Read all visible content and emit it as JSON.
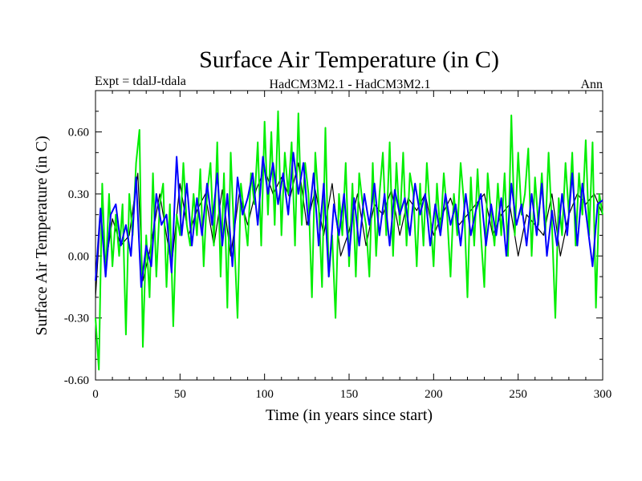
{
  "chart_data": {
    "type": "line",
    "title": "Surface Air Temperature (in C)",
    "subtitle_left": "Expt = tdalJ-tdala",
    "subtitle_center": "HadCM3M2.1 - HadCM3M2.1",
    "subtitle_right": "Ann",
    "xlabel": "Time (in years since start)",
    "ylabel": "Surface Air Temperature (in C)",
    "xlim": [
      0,
      300
    ],
    "ylim": [
      -0.6,
      0.8
    ],
    "xticks": [
      0,
      50,
      100,
      150,
      200,
      250,
      300
    ],
    "xtick_labels": [
      "0",
      "50",
      "100",
      "150",
      "200",
      "250",
      "300"
    ],
    "yticks": [
      -0.6,
      -0.3,
      0.0,
      0.3,
      0.6
    ],
    "ytick_labels": [
      "-0.60",
      "-0.30",
      "0.00",
      "0.30",
      "0.60"
    ],
    "grid": false,
    "series": [
      {
        "name": "black",
        "color": "#000000",
        "x": [
          0,
          3,
          6,
          10,
          15,
          20,
          25,
          28,
          32,
          38,
          45,
          50,
          55,
          60,
          65,
          70,
          75,
          80,
          85,
          90,
          95,
          100,
          105,
          110,
          115,
          120,
          125,
          130,
          135,
          140,
          145,
          150,
          155,
          160,
          165,
          170,
          175,
          180,
          185,
          190,
          195,
          200,
          205,
          210,
          215,
          220,
          225,
          230,
          235,
          240,
          245,
          250,
          255,
          260,
          265,
          270,
          275,
          280,
          285,
          290,
          295,
          300
        ],
        "values": [
          -0.2,
          0.2,
          -0.05,
          0.18,
          0.05,
          0.1,
          0.4,
          -0.12,
          0.02,
          0.3,
          -0.05,
          0.35,
          0.1,
          0.22,
          0.3,
          0.05,
          0.32,
          0.0,
          0.3,
          0.15,
          0.32,
          0.42,
          0.3,
          0.38,
          0.28,
          0.45,
          0.15,
          0.32,
          0.1,
          0.35,
          0.0,
          0.12,
          0.3,
          0.05,
          0.25,
          0.2,
          0.32,
          0.1,
          0.28,
          0.22,
          0.3,
          0.1,
          0.2,
          0.28,
          0.15,
          0.2,
          0.25,
          0.3,
          0.1,
          0.2,
          0.25,
          0.0,
          0.2,
          0.15,
          0.1,
          0.3,
          0.0,
          0.2,
          0.3,
          0.25,
          0.3,
          0.2
        ]
      },
      {
        "name": "green",
        "color": "#00ee00",
        "x": [
          0,
          2,
          4,
          6,
          8,
          10,
          12,
          14,
          16,
          18,
          20,
          22,
          24,
          26,
          28,
          30,
          32,
          34,
          36,
          38,
          40,
          42,
          44,
          46,
          48,
          50,
          52,
          54,
          56,
          58,
          60,
          62,
          64,
          66,
          68,
          70,
          72,
          74,
          76,
          78,
          80,
          82,
          84,
          86,
          88,
          90,
          92,
          94,
          96,
          98,
          100,
          102,
          104,
          106,
          108,
          110,
          112,
          114,
          116,
          118,
          120,
          122,
          124,
          126,
          128,
          130,
          132,
          134,
          136,
          138,
          140,
          142,
          144,
          146,
          148,
          150,
          152,
          154,
          156,
          158,
          160,
          162,
          164,
          166,
          168,
          170,
          172,
          174,
          176,
          178,
          180,
          182,
          184,
          186,
          188,
          190,
          192,
          194,
          196,
          198,
          200,
          202,
          204,
          206,
          208,
          210,
          212,
          214,
          216,
          218,
          220,
          222,
          224,
          226,
          228,
          230,
          232,
          234,
          236,
          238,
          240,
          242,
          244,
          246,
          248,
          250,
          252,
          254,
          256,
          258,
          260,
          262,
          264,
          266,
          268,
          270,
          272,
          274,
          276,
          278,
          280,
          282,
          284,
          286,
          288,
          290,
          292,
          294,
          296,
          298,
          300
        ],
        "values": [
          -0.3,
          -0.55,
          0.35,
          -0.1,
          0.3,
          -0.05,
          0.2,
          0.0,
          0.25,
          -0.38,
          0.3,
          0.1,
          0.45,
          0.61,
          -0.44,
          0.1,
          -0.2,
          0.4,
          -0.1,
          0.25,
          0.35,
          -0.15,
          0.25,
          -0.34,
          0.2,
          0.1,
          0.45,
          0.15,
          0.05,
          0.3,
          0.1,
          0.42,
          -0.05,
          0.3,
          0.45,
          0.05,
          0.55,
          -0.1,
          0.4,
          -0.25,
          0.5,
          0.1,
          -0.3,
          0.35,
          0.2,
          0.05,
          0.4,
          0.25,
          0.55,
          0.05,
          0.65,
          0.2,
          0.6,
          0.15,
          0.7,
          0.1,
          0.5,
          0.3,
          0.55,
          0.05,
          0.69,
          0.15,
          0.45,
          0.3,
          -0.2,
          0.5,
          0.25,
          -0.15,
          0.62,
          -0.1,
          0.1,
          -0.3,
          0.3,
          0.1,
          0.45,
          -0.05,
          0.35,
          -0.1,
          0.4,
          0.25,
          0.15,
          -0.1,
          0.45,
          0.0,
          0.3,
          0.5,
          0.1,
          0.55,
          0.0,
          0.45,
          0.15,
          0.5,
          0.05,
          0.4,
          0.3,
          -0.05,
          0.35,
          0.05,
          0.45,
          0.2,
          -0.05,
          0.35,
          0.1,
          0.4,
          0.2,
          -0.1,
          0.3,
          0.1,
          0.45,
          0.25,
          -0.2,
          0.38,
          0.05,
          0.42,
          0.1,
          -0.15,
          0.4,
          0.2,
          0.05,
          0.35,
          0.1,
          0.4,
          0.0,
          0.68,
          0.1,
          0.5,
          0.2,
          0.3,
          0.52,
          0.0,
          0.38,
          0.15,
          0.4,
          0.1,
          0.5,
          0.15,
          -0.3,
          0.28,
          0.1,
          0.45,
          0.2,
          0.5,
          0.05,
          0.4,
          0.2,
          0.56,
          0.1,
          0.55,
          -0.25,
          0.3,
          0.2
        ]
      },
      {
        "name": "blue",
        "color": "#0000ff",
        "x": [
          0,
          3,
          6,
          9,
          12,
          15,
          18,
          21,
          24,
          27,
          30,
          33,
          36,
          39,
          42,
          45,
          48,
          51,
          54,
          57,
          60,
          63,
          66,
          69,
          72,
          75,
          78,
          81,
          84,
          87,
          90,
          93,
          96,
          99,
          102,
          105,
          108,
          111,
          114,
          117,
          120,
          123,
          126,
          129,
          132,
          135,
          138,
          141,
          144,
          147,
          150,
          153,
          156,
          159,
          162,
          165,
          168,
          171,
          174,
          177,
          180,
          183,
          186,
          189,
          192,
          195,
          198,
          201,
          204,
          207,
          210,
          213,
          216,
          219,
          222,
          225,
          228,
          231,
          234,
          237,
          240,
          243,
          246,
          249,
          252,
          255,
          258,
          261,
          264,
          267,
          270,
          273,
          276,
          279,
          282,
          285,
          288,
          291,
          294,
          297,
          300
        ],
        "values": [
          -0.12,
          0.23,
          -0.1,
          0.2,
          0.25,
          0.05,
          0.15,
          0.0,
          0.38,
          -0.15,
          0.05,
          -0.05,
          0.3,
          0.15,
          0.2,
          -0.08,
          0.48,
          0.1,
          0.35,
          0.05,
          0.28,
          0.1,
          0.35,
          0.15,
          0.4,
          0.05,
          0.3,
          -0.05,
          0.38,
          0.2,
          0.28,
          0.4,
          0.15,
          0.48,
          0.3,
          0.45,
          0.25,
          0.4,
          0.2,
          0.5,
          0.3,
          0.45,
          0.15,
          0.4,
          0.05,
          0.35,
          -0.1,
          0.25,
          0.1,
          0.3,
          0.0,
          0.28,
          0.05,
          0.3,
          0.15,
          0.35,
          0.1,
          0.3,
          0.05,
          0.32,
          0.2,
          0.28,
          0.1,
          0.35,
          0.2,
          0.3,
          0.05,
          0.25,
          0.1,
          0.3,
          0.15,
          0.25,
          0.05,
          0.3,
          0.1,
          0.22,
          0.3,
          0.05,
          0.25,
          0.1,
          0.28,
          0.0,
          0.35,
          0.15,
          0.25,
          0.05,
          0.3,
          0.1,
          0.35,
          0.0,
          0.22,
          0.05,
          0.3,
          0.1,
          0.4,
          0.05,
          0.35,
          0.15,
          -0.05,
          0.25,
          0.27
        ]
      }
    ]
  }
}
